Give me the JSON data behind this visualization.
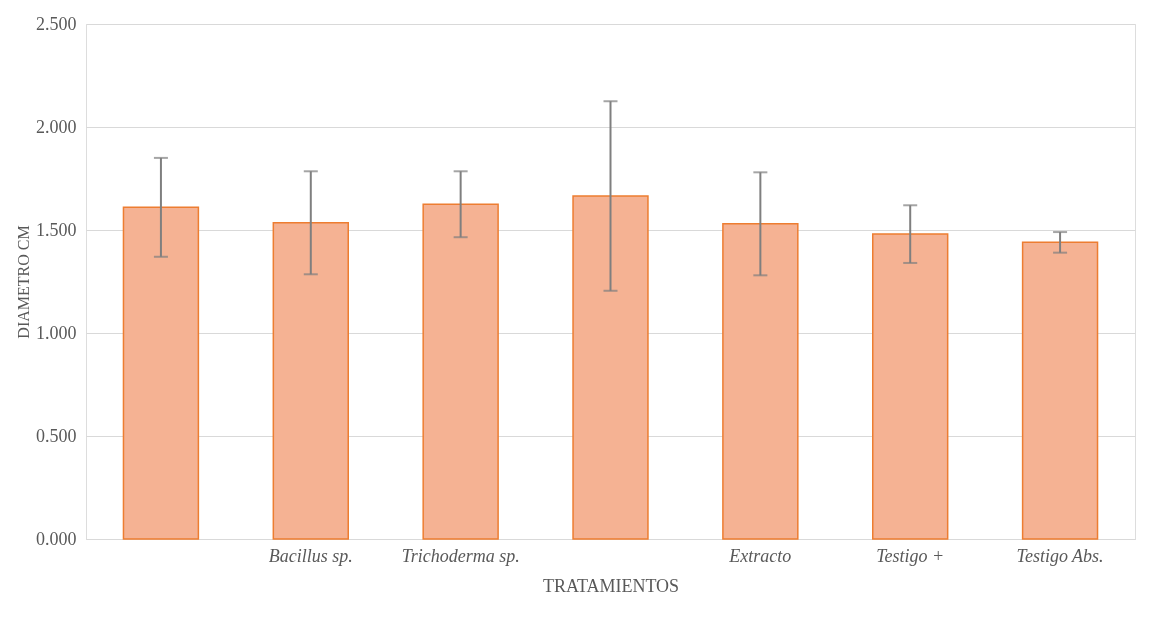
{
  "chart_data": {
    "type": "bar",
    "xlabel": "TRATAMIENTOS",
    "ylabel": "DIAMETRO CM",
    "categories": [
      null,
      "Bacillus sp.",
      "Trichoderma sp.",
      null,
      "Extracto",
      "Testigo +",
      "Testigo Abs."
    ],
    "values": [
      1.61,
      1.535,
      1.625,
      1.665,
      1.53,
      1.48,
      1.44
    ],
    "errors": [
      0.24,
      0.25,
      0.16,
      0.46,
      0.25,
      0.14,
      0.05
    ],
    "color": "#f5b293",
    "ylim": [
      0,
      2.5
    ],
    "yticks": [
      {
        "value": 0,
        "label": "0.000"
      },
      {
        "value": 0.5,
        "label": "0.500"
      },
      {
        "value": 1,
        "label": "1.000"
      },
      {
        "value": 1.5,
        "label": "1.500"
      },
      {
        "value": 2,
        "label": "2.000"
      },
      {
        "value": 2.5,
        "label": "2.500"
      }
    ],
    "grid": "y"
  }
}
